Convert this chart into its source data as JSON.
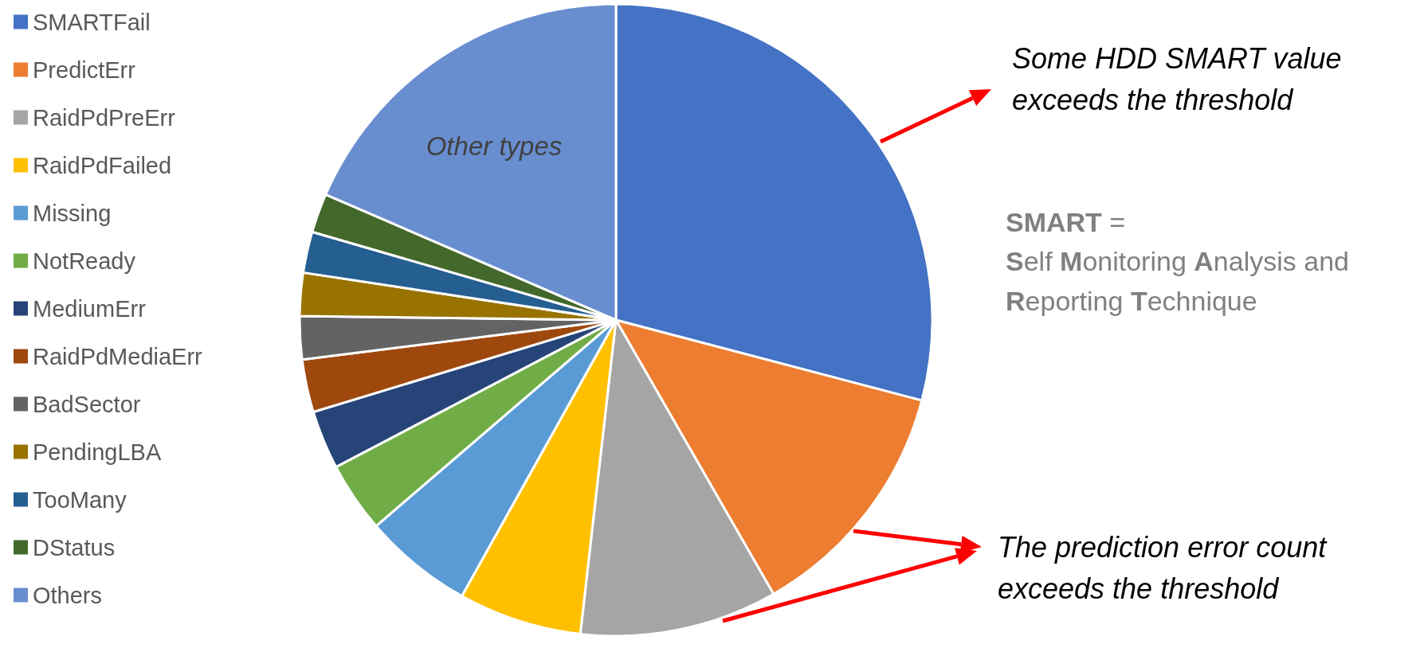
{
  "chart_data": {
    "type": "pie",
    "categories": [
      "SMARTFail",
      "PredictErr",
      "RaidPdPreErr",
      "RaidPdFailed",
      "Missing",
      "NotReady",
      "MediumErr",
      "RaidPdMediaErr",
      "BadSector",
      "PendingLBA",
      "TooMany",
      "DStatus",
      "Others"
    ],
    "values": [
      29.1,
      12.6,
      10.1,
      6.3,
      5.6,
      3.6,
      3.0,
      2.7,
      2.2,
      2.2,
      2.1,
      2.0,
      18.5
    ],
    "colors": [
      "#4472c4",
      "#ed7d31",
      "#a5a5a5",
      "#ffc000",
      "#5b9bd5",
      "#70ad47",
      "#264478",
      "#9e480e",
      "#636363",
      "#997300",
      "#255e91",
      "#43682b",
      "#698ed0"
    ],
    "legend": "left",
    "annotations": [
      "Other types",
      "Some HDD SMART value exceeds the threshold",
      "SMART = Self Monitoring Analysis and Reporting Technique",
      "The prediction error count exceeds the threshold"
    ]
  }
}
